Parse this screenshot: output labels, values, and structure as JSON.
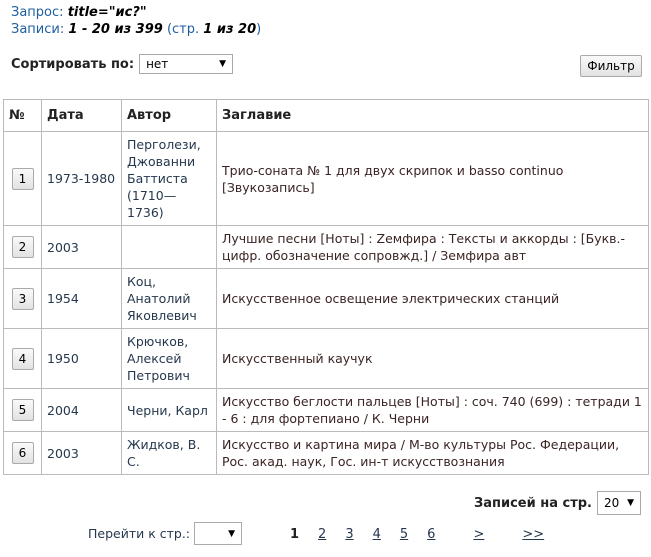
{
  "query": {
    "label": "Запрос:",
    "value": "title=\"ис?\""
  },
  "records": {
    "label": "Записи:",
    "range": "1 - 20 из 399",
    "page_prefix": "(стр.",
    "page_value": "1 из 20",
    "page_suffix": ")"
  },
  "sort": {
    "label": "Сортировать по:",
    "value": "нет"
  },
  "filter_label": "Фильтр",
  "columns": [
    "№",
    "Дата",
    "Автор",
    "Заглавие"
  ],
  "rows": [
    {
      "num": "1",
      "date": "1973-1980",
      "author": "Перголези, Джованни Баттиста (1710—1736)",
      "title": "Трио-соната № 1 для двух скрипок и basso continuo [Звукозапись]"
    },
    {
      "num": "2",
      "date": "2003",
      "author": "",
      "title": "Лучшие песни [Ноты] : Zeмфира : Тексты и аккорды : [Букв.-цифр. обозначение сопровжд.] / Земфира авт"
    },
    {
      "num": "3",
      "date": "1954",
      "author": "Коц, Анатолий Яковлевич",
      "title": "Искусственное освещение электрических станций"
    },
    {
      "num": "4",
      "date": "1950",
      "author": "Крючков, Алексей Петрович",
      "title": "Искусственный каучук"
    },
    {
      "num": "5",
      "date": "2004",
      "author": "Черни, Карл",
      "title": "Искусство беглости пальцев [Ноты] : соч. 740 (699) : тетради 1 - 6 : для фортепиано / К. Черни"
    },
    {
      "num": "6",
      "date": "2003",
      "author": "Жидков, В. С.",
      "title": "Искусство и картина мира / М-во культуры Рос. Федерации, Рос. акад. наук, Гос. ин-т искусствознания"
    }
  ],
  "per_page": {
    "label": "Записей на стр.",
    "value": "20"
  },
  "goto": {
    "label": "Перейти к стр.:",
    "value": ""
  },
  "pagination": {
    "current": "1",
    "pages": [
      "2",
      "3",
      "4",
      "5",
      "6"
    ],
    "next": ">",
    "last": ">>"
  }
}
